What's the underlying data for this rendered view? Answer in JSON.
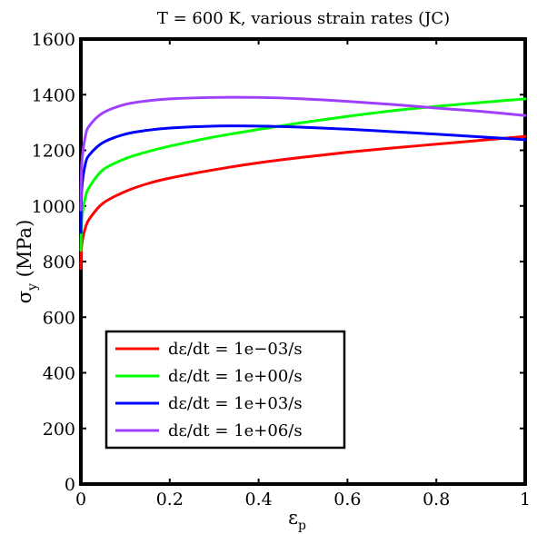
{
  "chart_data": {
    "type": "line",
    "title": "T = 600 K, various strain rates (JC)",
    "xlabel": {
      "main": "ε",
      "sub": "p"
    },
    "ylabel": {
      "main": "σ",
      "sub": "y",
      "unit": " (MPa)"
    },
    "xlim": [
      0,
      1
    ],
    "ylim": [
      0,
      1600
    ],
    "xticks": [
      0,
      0.2,
      0.4,
      0.6,
      0.8,
      1
    ],
    "xtick_labels": [
      "0",
      "0.2",
      "0.4",
      "0.6",
      "0.8",
      "1"
    ],
    "yticks": [
      0,
      200,
      400,
      600,
      800,
      1000,
      1200,
      1400,
      1600
    ],
    "ytick_labels": [
      "0",
      "200",
      "400",
      "600",
      "800",
      "1000",
      "1200",
      "1400",
      "1600"
    ],
    "grid": false,
    "legend_position": "bottom-left",
    "series": [
      {
        "name": "dε/dt = 1e−03/s",
        "color": "#ff0000",
        "x": [
          0,
          0.002,
          0.01,
          0.02,
          0.05,
          0.1,
          0.15,
          0.2,
          0.3,
          0.4,
          0.5,
          0.6,
          0.7,
          0.8,
          0.9,
          1.0
        ],
        "y": [
          775,
          860,
          920,
          955,
          1010,
          1052,
          1080,
          1100,
          1130,
          1155,
          1175,
          1193,
          1208,
          1222,
          1236,
          1250
        ]
      },
      {
        "name": "dε/dt = 1e+00/s",
        "color": "#00ff00",
        "x": [
          0,
          0.002,
          0.01,
          0.02,
          0.05,
          0.1,
          0.15,
          0.2,
          0.3,
          0.4,
          0.5,
          0.6,
          0.7,
          0.8,
          0.9,
          1.0
        ],
        "y": [
          840,
          950,
          1030,
          1070,
          1130,
          1170,
          1195,
          1215,
          1248,
          1275,
          1300,
          1322,
          1342,
          1358,
          1372,
          1385
        ]
      },
      {
        "name": "dε/dt = 1e+03/s",
        "color": "#0000ff",
        "x": [
          0,
          0.002,
          0.01,
          0.02,
          0.05,
          0.1,
          0.15,
          0.2,
          0.3,
          0.4,
          0.5,
          0.6,
          0.7,
          0.8,
          0.9,
          1.0
        ],
        "y": [
          905,
          1060,
          1150,
          1185,
          1228,
          1258,
          1272,
          1280,
          1287,
          1287,
          1283,
          1276,
          1267,
          1258,
          1248,
          1238
        ]
      },
      {
        "name": "dε/dt = 1e+06/s",
        "color": "#a040ff",
        "x": [
          0,
          0.002,
          0.01,
          0.02,
          0.05,
          0.1,
          0.15,
          0.2,
          0.3,
          0.4,
          0.5,
          0.6,
          0.7,
          0.8,
          0.9,
          1.0
        ],
        "y": [
          985,
          1150,
          1250,
          1290,
          1335,
          1365,
          1378,
          1385,
          1390,
          1390,
          1385,
          1376,
          1365,
          1352,
          1340,
          1325
        ]
      }
    ]
  }
}
